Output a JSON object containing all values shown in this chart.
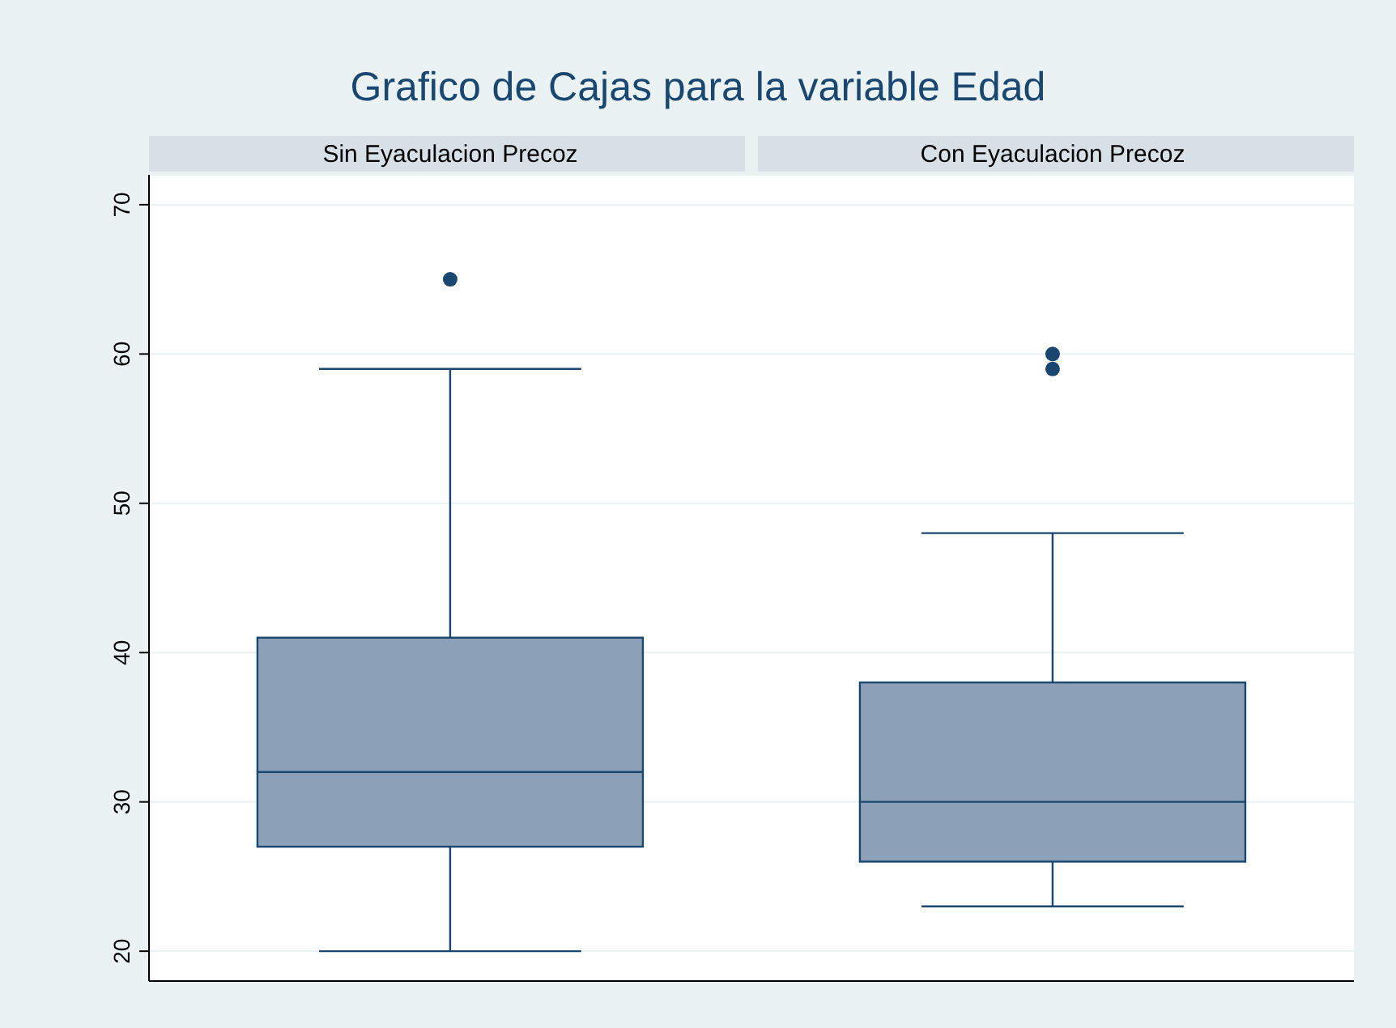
{
  "chart_data": {
    "type": "box",
    "title": "Grafico de Cajas para la variable Edad",
    "categories": [
      "Sin Eyaculacion Precoz",
      "Con Eyaculacion Precoz"
    ],
    "boxes": [
      {
        "low": 20,
        "q1": 27,
        "median": 32,
        "q3": 41,
        "high": 59,
        "outliers": [
          65
        ]
      },
      {
        "low": 23,
        "q1": 26,
        "median": 30,
        "q3": 38,
        "high": 48,
        "outliers": [
          59,
          60
        ]
      }
    ],
    "color": "#8ca1b7",
    "ylim": [
      18,
      72
    ],
    "yticks": [
      20,
      30,
      40,
      50,
      60,
      70
    ],
    "grid": "y"
  }
}
